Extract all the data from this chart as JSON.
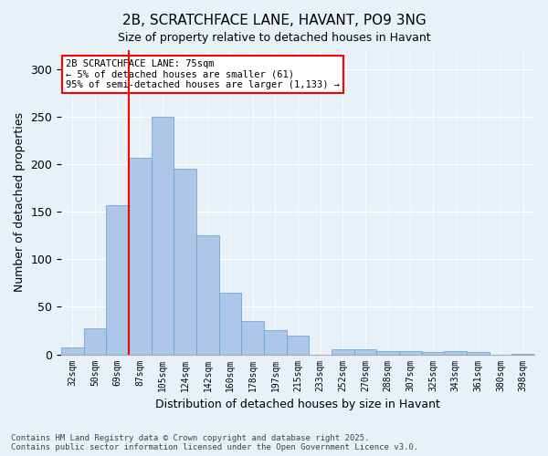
{
  "title": "2B, SCRATCHFACE LANE, HAVANT, PO9 3NG",
  "subtitle": "Size of property relative to detached houses in Havant",
  "xlabel": "Distribution of detached houses by size in Havant",
  "ylabel": "Number of detached properties",
  "bar_color": "#aec6e8",
  "bar_edge_color": "#5a9fd4",
  "background_color": "#e8f0f8",
  "grid_color": "#ffffff",
  "vline_color": "red",
  "vline_pos": 2.5,
  "annotation_text": "2B SCRATCHFACE LANE: 75sqm\n← 5% of detached houses are smaller (61)\n95% of semi-detached houses are larger (1,133) →",
  "annotation_box_color": "white",
  "annotation_box_edge": "red",
  "categories": [
    "32sqm",
    "50sqm",
    "69sqm",
    "87sqm",
    "105sqm",
    "124sqm",
    "142sqm",
    "160sqm",
    "178sqm",
    "197sqm",
    "215sqm",
    "233sqm",
    "252sqm",
    "270sqm",
    "288sqm",
    "307sqm",
    "325sqm",
    "343sqm",
    "361sqm",
    "380sqm",
    "398sqm"
  ],
  "values": [
    7,
    27,
    157,
    207,
    250,
    195,
    125,
    65,
    35,
    25,
    20,
    0,
    5,
    5,
    3,
    3,
    2,
    3,
    2,
    0,
    1
  ],
  "ylim": [
    0,
    320
  ],
  "yticks": [
    0,
    50,
    100,
    150,
    200,
    250,
    300
  ],
  "footnote": "Contains HM Land Registry data © Crown copyright and database right 2025.\nContains public sector information licensed under the Open Government Licence v3.0.",
  "bar_width": 1.0
}
